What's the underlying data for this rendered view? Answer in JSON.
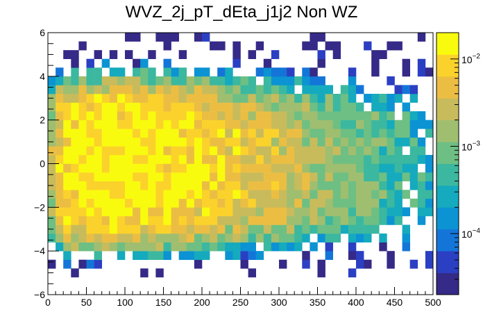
{
  "chart_data": {
    "type": "heatmap",
    "title": "WVZ_2j_pT_dEta_j1j2 Non WZ",
    "xlabel": "",
    "ylabel": "",
    "xlim": [
      0,
      500
    ],
    "ylim": [
      -6,
      6
    ],
    "x_bin_width": 10,
    "y_bin_width": 0.4,
    "x_ticks": [
      "0",
      "50",
      "100",
      "150",
      "200",
      "250",
      "300",
      "350",
      "400",
      "450",
      "500"
    ],
    "y_ticks": [
      "−6",
      "−4",
      "−2",
      "0",
      "2",
      "4",
      "6"
    ],
    "z_scale": "log",
    "z_range": [
      2e-05,
      0.02
    ],
    "z_ticks": [
      {
        "base": "10",
        "exp": "−2",
        "value": 0.01
      },
      {
        "base": "10",
        "exp": "−3",
        "value": 0.001
      },
      {
        "base": "10",
        "exp": "−4",
        "value": 0.0001
      }
    ],
    "colormap": [
      "#352a87",
      "#2b3fc3",
      "#1475d8",
      "#0b93d3",
      "#15aabd",
      "#3bb89f",
      "#6ebf83",
      "#9fbe70",
      "#c8bb5c",
      "#ebbe43",
      "#fbd22c",
      "#f9fb0e"
    ],
    "grid": false,
    "legend": "colorbar-right"
  }
}
